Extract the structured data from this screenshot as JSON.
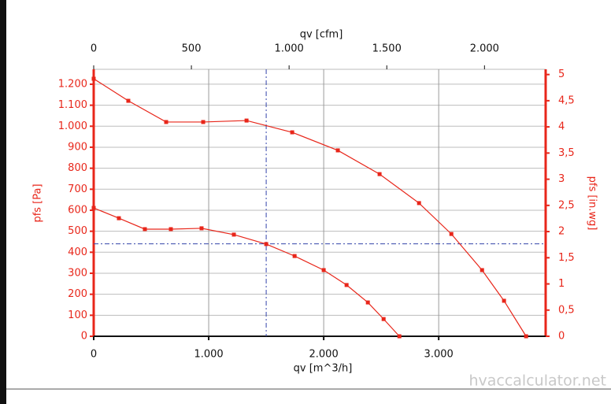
{
  "chart_data": {
    "type": "line",
    "xlabel": "qv [m^3/h]",
    "x2label": "qv [cfm]",
    "ylabel": "pfs [Pa]",
    "y2label": "pfs [in.wg]",
    "xlim": [
      0,
      3930
    ],
    "x2lim": [
      0,
      2313
    ],
    "ylim": [
      0,
      1271
    ],
    "y2lim": [
      0,
      5.1
    ],
    "xticks": [
      0,
      {
        "value": 1000,
        "label": "1.000"
      },
      {
        "value": 2000,
        "label": "2.000"
      },
      {
        "value": 3000,
        "label": "3.000"
      }
    ],
    "x2ticks": [
      0,
      500,
      {
        "value": 1000,
        "label": "1.000"
      },
      {
        "value": 1500,
        "label": "1.500"
      },
      {
        "value": 2000,
        "label": "2.000"
      }
    ],
    "yticks": [
      0,
      100,
      200,
      300,
      400,
      500,
      600,
      700,
      800,
      900,
      {
        "value": 1000,
        "label": "1.000"
      },
      {
        "value": 1100,
        "label": "1.100"
      },
      {
        "value": 1200,
        "label": "1.200"
      }
    ],
    "y2ticks": [
      0,
      {
        "value": 0.5,
        "label": "0,5"
      },
      1,
      {
        "value": 1.5,
        "label": "1,5"
      },
      2,
      {
        "value": 2.5,
        "label": "2,5"
      },
      3,
      {
        "value": 3.5,
        "label": "3,5"
      },
      4,
      {
        "value": 4.5,
        "label": "4,5"
      },
      5
    ],
    "grid": true,
    "operating_point": {
      "x": 1500,
      "y": 440,
      "color": "#3344aa"
    },
    "series": [
      {
        "color": "#e8261a",
        "x": [
          0,
          301,
          630,
          952,
          1329,
          1726,
          2123,
          2486,
          2829,
          3110,
          3377,
          3568,
          3760
        ],
        "values": [
          1226,
          1121,
          1020,
          1020,
          1027,
          971,
          885,
          772,
          634,
          487,
          315,
          169,
          0
        ]
      },
      {
        "color": "#e8261a",
        "x": [
          0,
          219,
          445,
          671,
          938,
          1219,
          1500,
          1747,
          2000,
          2199,
          2384,
          2521,
          2658
        ],
        "values": [
          611,
          562,
          510,
          510,
          514,
          484,
          439,
          382,
          315,
          244,
          161,
          82,
          0
        ]
      }
    ],
    "watermark": "hvaccalculator.net"
  }
}
